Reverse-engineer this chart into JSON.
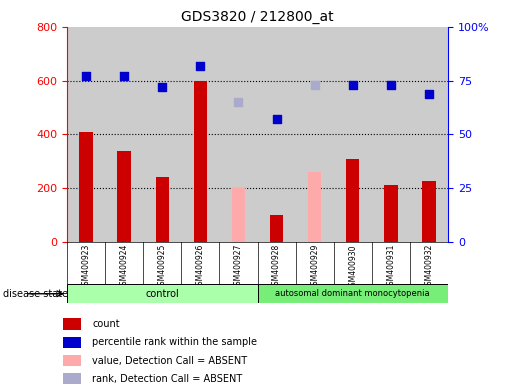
{
  "title": "GDS3820 / 212800_at",
  "samples": [
    "GSM400923",
    "GSM400924",
    "GSM400925",
    "GSM400926",
    "GSM400927",
    "GSM400928",
    "GSM400929",
    "GSM400930",
    "GSM400931",
    "GSM400932"
  ],
  "count_values": [
    410,
    340,
    240,
    600,
    null,
    100,
    null,
    310,
    210,
    225
  ],
  "count_absent": [
    null,
    null,
    null,
    null,
    200,
    null,
    260,
    null,
    null,
    null
  ],
  "percentile_values": [
    77,
    77,
    72,
    82,
    null,
    57,
    null,
    73,
    73,
    69
  ],
  "percentile_absent": [
    null,
    null,
    null,
    null,
    65,
    null,
    73,
    null,
    null,
    null
  ],
  "ylim_left": [
    0,
    800
  ],
  "ylim_right": [
    0,
    100
  ],
  "yticks_left": [
    0,
    200,
    400,
    600,
    800
  ],
  "yticks_right": [
    0,
    25,
    50,
    75,
    100
  ],
  "ytick_labels_right": [
    "0",
    "25",
    "50",
    "75",
    "100%"
  ],
  "bar_color": "#cc0000",
  "bar_absent_color": "#ffaaaa",
  "dot_color": "#0000cc",
  "dot_absent_color": "#aaaacc",
  "control_samples": 5,
  "disease_samples": 5,
  "control_label": "control",
  "disease_label": "autosomal dominant monocytopenia",
  "control_bg": "#aaffaa",
  "disease_bg": "#77ee77",
  "tick_area_bg": "#cccccc",
  "legend_items": [
    {
      "label": "count",
      "color": "#cc0000"
    },
    {
      "label": "percentile rank within the sample",
      "color": "#0000cc"
    },
    {
      "label": "value, Detection Call = ABSENT",
      "color": "#ffaaaa"
    },
    {
      "label": "rank, Detection Call = ABSENT",
      "color": "#aaaacc"
    }
  ]
}
